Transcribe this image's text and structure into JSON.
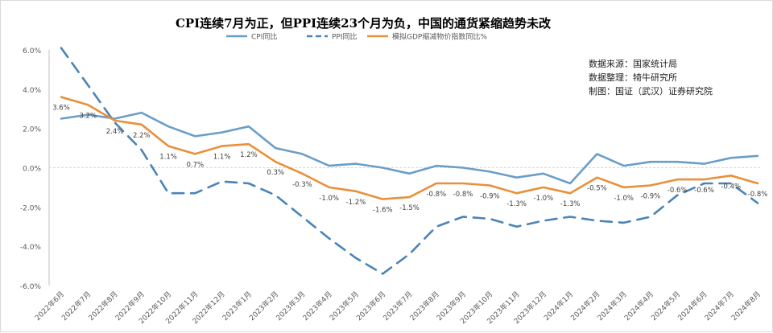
{
  "notes": {
    "source": "数据来源：国家统计局",
    "processing": "数据整理：犄牛研究所",
    "producer": "制图：国证（武汉）证券研究院"
  },
  "chart_data": {
    "type": "line",
    "title": "CPI连续7月为正，但PPI连续23个月为负，中国的通货紧缩趋势未改",
    "xlabel": "",
    "ylabel": "",
    "ylim": [
      -6,
      6
    ],
    "yticks": [
      "6.0%",
      "4.0%",
      "2.0%",
      "0.0%",
      "-2.0%",
      "-4.0%",
      "-6.0%"
    ],
    "grid": false,
    "legend_position": "top",
    "categories": [
      "2022年6月",
      "2022年7月",
      "2022年8月",
      "2022年9月",
      "2022年10月",
      "2022年11月",
      "2022年12月",
      "2023年1月",
      "2023年2月",
      "2023年3月",
      "2023年4月",
      "2023年5月",
      "2023年6月",
      "2023年7月",
      "2023年8月",
      "2023年9月",
      "2023年10月",
      "2023年11月",
      "2023年12月",
      "2024年1月",
      "2024年2月",
      "2024年3月",
      "2024年4月",
      "2024年5月",
      "2024年6月",
      "2024年7月",
      "2024年8月"
    ],
    "series": [
      {
        "name": "CPI同比",
        "color": "#6a9ec8",
        "style": "solid",
        "values": [
          2.5,
          2.7,
          2.5,
          2.8,
          2.1,
          1.6,
          1.8,
          2.1,
          1.0,
          0.7,
          0.1,
          0.2,
          0.0,
          -0.3,
          0.1,
          0.0,
          -0.2,
          -0.5,
          -0.3,
          -0.8,
          0.7,
          0.1,
          0.3,
          0.3,
          0.2,
          0.5,
          0.6
        ]
      },
      {
        "name": "PPI同比",
        "color": "#4a84b8",
        "style": "dashed",
        "values": [
          6.1,
          4.2,
          2.3,
          0.9,
          -1.3,
          -1.3,
          -0.7,
          -0.8,
          -1.4,
          -2.5,
          -3.6,
          -4.6,
          -5.4,
          -4.4,
          -3.0,
          -2.5,
          -2.6,
          -3.0,
          -2.7,
          -2.5,
          -2.7,
          -2.8,
          -2.5,
          -1.4,
          -0.8,
          -0.8,
          -1.8
        ]
      },
      {
        "name": "模拟GDP缩减物价指数同比%",
        "color": "#e8903a",
        "style": "solid",
        "values": [
          3.6,
          3.2,
          2.4,
          2.2,
          1.1,
          0.7,
          1.1,
          1.2,
          0.3,
          -0.3,
          -1.0,
          -1.2,
          -1.6,
          -1.5,
          -0.8,
          -0.8,
          -0.9,
          -1.3,
          -1.0,
          -1.3,
          -0.5,
          -1.0,
          -0.9,
          -0.6,
          -0.6,
          -0.4,
          -0.8
        ],
        "labels": [
          "3.6%",
          "3.2%",
          "2.4%",
          "2.2%",
          "1.1%",
          "0.7%",
          "1.1%",
          "1.2%",
          "0.3%",
          "-0.3%",
          "-1.0%",
          "-1.2%",
          "-1.6%",
          "-1.5%",
          "-0.8%",
          "-0.8%",
          "-0.9%",
          "-1.3%",
          "-1.0%",
          "-1.3%",
          "-0.5%",
          "-1.0%",
          "-0.9%",
          "-0.6%",
          "-0.6%",
          "-0.4%",
          "-0.8%"
        ]
      }
    ]
  }
}
